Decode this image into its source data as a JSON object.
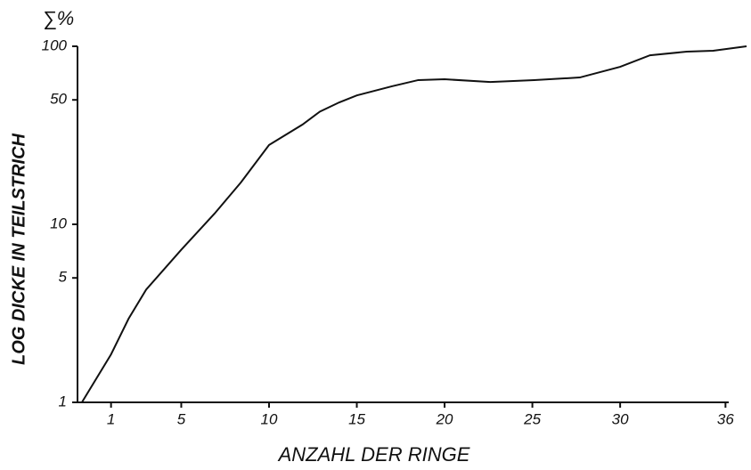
{
  "chart_data": {
    "type": "line",
    "y_annotation": "∑%",
    "ylabel": "LOG DICKE IN TEILSTRICH",
    "xlabel": "ANZAHL DER RINGE",
    "log_y": true,
    "color": "#111111",
    "x": [
      -0.66,
      1,
      2,
      3,
      5,
      6.9,
      8.4,
      10,
      11.9,
      12.9,
      14,
      15,
      17,
      18.5,
      20,
      22.6,
      25.1,
      27.7,
      30,
      31.7,
      33.8,
      35.3,
      37.2
    ],
    "values": [
      1,
      1.86,
      2.95,
      4.3,
      7.2,
      11.5,
      17.2,
      27.9,
      36.3,
      43,
      48.4,
      53,
      59.6,
      64.6,
      65.3,
      63,
      64.6,
      66.8,
      76.7,
      89,
      93.3,
      94.4,
      100
    ],
    "xlim": [
      -0.91,
      37.2
    ],
    "ylim": [
      1,
      100
    ],
    "xticks": [
      1,
      5,
      10,
      15,
      20,
      25,
      30,
      36
    ],
    "yticks": [
      1,
      5,
      10,
      50,
      100
    ]
  }
}
